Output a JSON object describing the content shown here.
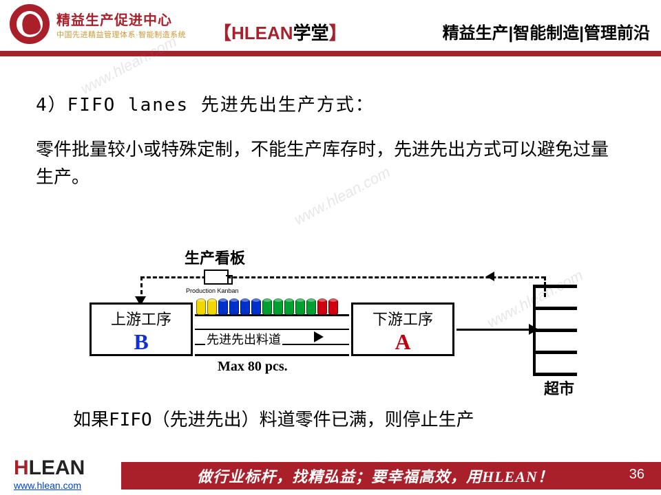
{
  "header": {
    "logo_cn": "精益生产促进中心",
    "logo_sub": "中国先进精益管理体系·智能制造系统",
    "center_bracket_l": "【",
    "center_hlean": "HLEAN",
    "center_xuetang": "学堂",
    "center_bracket_r": "】",
    "right": "精益生产|智能制造|管理前沿"
  },
  "colors": {
    "brand_red": "#a91f2a",
    "proc_a_letter": "#c00010",
    "proc_b_letter": "#1030d0",
    "background": "#ffffff",
    "text": "#000000",
    "link": "#0044cc"
  },
  "content": {
    "line1": "4）FIFO lanes 先进先出生产方式：",
    "para": "零件批量较小或特殊定制，不能生产库存时，先进先出方式可以避免过量生产。",
    "bottom_note": "如果FIFO（先进先出）料道零件已满，则停止生产"
  },
  "diagram": {
    "type": "flowchart",
    "kanban_label": "生产看板",
    "prod_kanban_en": "Production Kanban",
    "proc_b_cn": "上游工序",
    "proc_b_letter": "B",
    "proc_a_cn": "下游工序",
    "proc_a_letter": "A",
    "lane_label": "先进先出料道",
    "max_label": "Max 80 pcs.",
    "sm_label": "超市",
    "parts_colors": [
      "#f2d600",
      "#f2d600",
      "#0030cc",
      "#0030cc",
      "#0030cc",
      "#0030cc",
      "#00a030",
      "#00a030",
      "#00a030",
      "#00a030",
      "#00a030",
      "#d00010",
      "#d00010"
    ],
    "supermarket_shelves": [
      0,
      32,
      64,
      96,
      128
    ]
  },
  "footer": {
    "brand_h": "H",
    "brand_rest": "LEAN",
    "url": "www.hlean.com",
    "slogan": "做行业标杆，找精弘益；要幸福高效，用HLEAN！",
    "page": "36"
  },
  "watermark_text": "www.hlean.com"
}
